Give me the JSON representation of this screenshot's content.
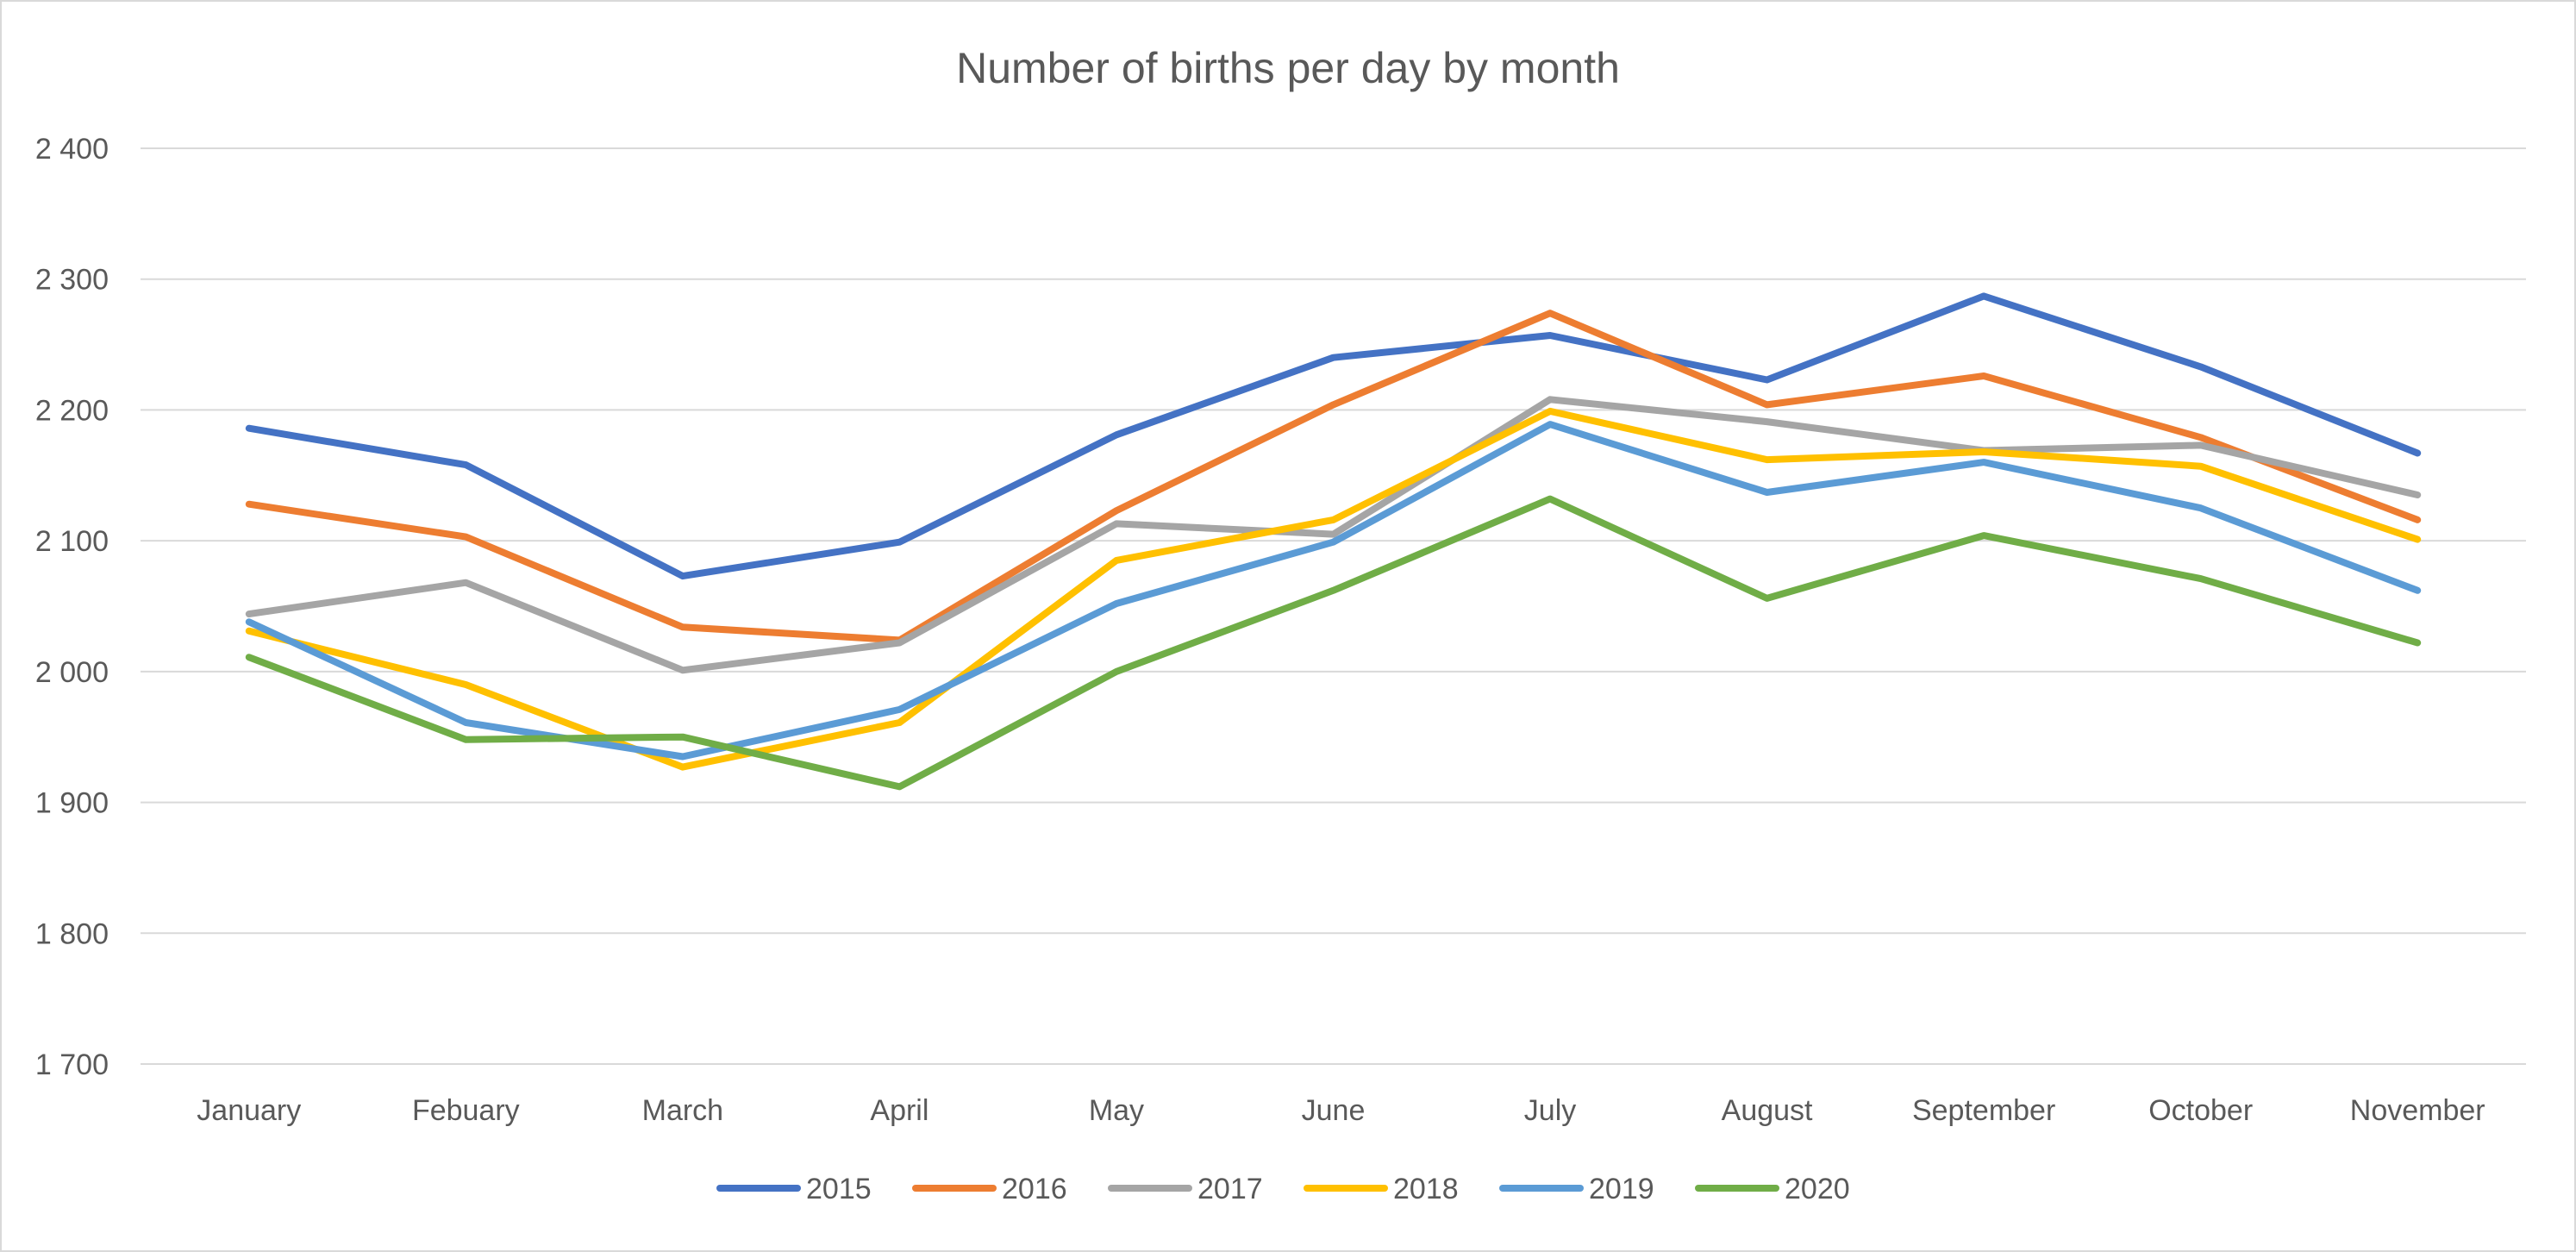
{
  "chart_data": {
    "type": "line",
    "title": "Number of births per day by month",
    "xlabel": "",
    "ylabel": "",
    "categories": [
      "January",
      "Febuary",
      "March",
      "April",
      "May",
      "June",
      "July",
      "August",
      "September",
      "October",
      "November"
    ],
    "ylim": [
      1700,
      2400
    ],
    "yticks": [
      {
        "value": 1700,
        "label": "1 700"
      },
      {
        "value": 1800,
        "label": "1 800"
      },
      {
        "value": 1900,
        "label": "1 900"
      },
      {
        "value": 2000,
        "label": "2 000"
      },
      {
        "value": 2100,
        "label": "2 100"
      },
      {
        "value": 2200,
        "label": "2 200"
      },
      {
        "value": 2300,
        "label": "2 300"
      },
      {
        "value": 2400,
        "label": "2 400"
      }
    ],
    "grid": true,
    "legend": "bottom",
    "series": [
      {
        "name": "2015",
        "color": "#4472C4",
        "values": [
          2186,
          2158,
          2073,
          2099,
          2181,
          2240,
          2257,
          2223,
          2287,
          2233,
          2167
        ]
      },
      {
        "name": "2016",
        "color": "#ED7D31",
        "values": [
          2128,
          2103,
          2034,
          2024,
          2123,
          2204,
          2274,
          2204,
          2226,
          2179,
          2116
        ]
      },
      {
        "name": "2017",
        "color": "#A5A5A5",
        "values": [
          2044,
          2068,
          2001,
          2022,
          2113,
          2105,
          2208,
          2191,
          2169,
          2173,
          2135
        ]
      },
      {
        "name": "2018",
        "color": "#FFC000",
        "values": [
          2031,
          1990,
          1927,
          1961,
          2085,
          2116,
          2199,
          2162,
          2168,
          2157,
          2101
        ]
      },
      {
        "name": "2019",
        "color": "#5B9BD5",
        "values": [
          2038,
          1961,
          1935,
          1971,
          2052,
          2099,
          2189,
          2137,
          2160,
          2125,
          2062
        ]
      },
      {
        "name": "2020",
        "color": "#70AD47",
        "values": [
          2011,
          1948,
          1950,
          1912,
          2000,
          2062,
          2132,
          2056,
          2104,
          2071,
          2022
        ]
      }
    ]
  }
}
